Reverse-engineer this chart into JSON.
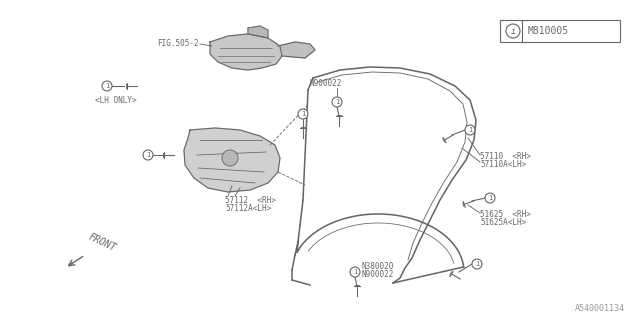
{
  "bg_color": "#ffffff",
  "fig_width": 6.4,
  "fig_height": 3.2,
  "dpi": 100,
  "watermark": "A540001134",
  "info_box": "M810005",
  "labels": {
    "fig_ref": "FIG.505-2",
    "lh_only": "<LH ONLY>",
    "n900022_top": "N900022",
    "n900022_bot": "N900022",
    "n380020": "N380020",
    "p57110": "57110  <RH>",
    "p57110a": "57110A<LH>",
    "p57112": "57112  <RH>",
    "p57112a": "57112A<LH>",
    "p51625": "51625  <RH>",
    "p51625a": "51625A<LH>",
    "front": "FRONT"
  },
  "line_color": "#666666",
  "fill_color": "#d8d8d8",
  "line_width": 0.8
}
